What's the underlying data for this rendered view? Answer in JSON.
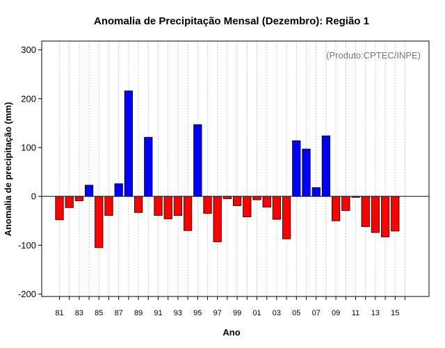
{
  "chart_data": {
    "type": "bar",
    "title": "Anomalia de Precipitação Mensal (Dezembro): Região 1",
    "xlabel": "Ano",
    "ylabel": "Anomalia de precipitação (mm)",
    "annotation": "(Produto:CPTEC/INPE)",
    "ylim": [
      -205,
      318
    ],
    "yticks": [
      -200,
      -100,
      0,
      100,
      200,
      300
    ],
    "x_tick_labels": [
      "81",
      "83",
      "85",
      "87",
      "89",
      "91",
      "93",
      "95",
      "97",
      "99",
      "01",
      "03",
      "05",
      "07",
      "09",
      "11",
      "13",
      "15"
    ],
    "categories": [
      "1981",
      "1982",
      "1983",
      "1984",
      "1985",
      "1986",
      "1987",
      "1988",
      "1989",
      "1990",
      "1991",
      "1992",
      "1993",
      "1994",
      "1995",
      "1996",
      "1997",
      "1998",
      "1999",
      "2000",
      "2001",
      "2002",
      "2003",
      "2004",
      "2005",
      "2006",
      "2007",
      "2008",
      "2009",
      "2010",
      "2011",
      "2012",
      "2013",
      "2014",
      "2015"
    ],
    "values": [
      -48,
      -23,
      -9,
      23,
      -105,
      -39,
      26,
      216,
      -33,
      121,
      -39,
      -46,
      -39,
      -70,
      147,
      -35,
      -93,
      -5,
      -19,
      -42,
      -7,
      -22,
      -47,
      -87,
      114,
      97,
      18,
      124,
      -50,
      -29,
      -2,
      -62,
      -74,
      -83,
      -71
    ],
    "colors": {
      "positive": "#0000ff",
      "negative": "#ff0000"
    },
    "grid": "vertical-dotted"
  }
}
